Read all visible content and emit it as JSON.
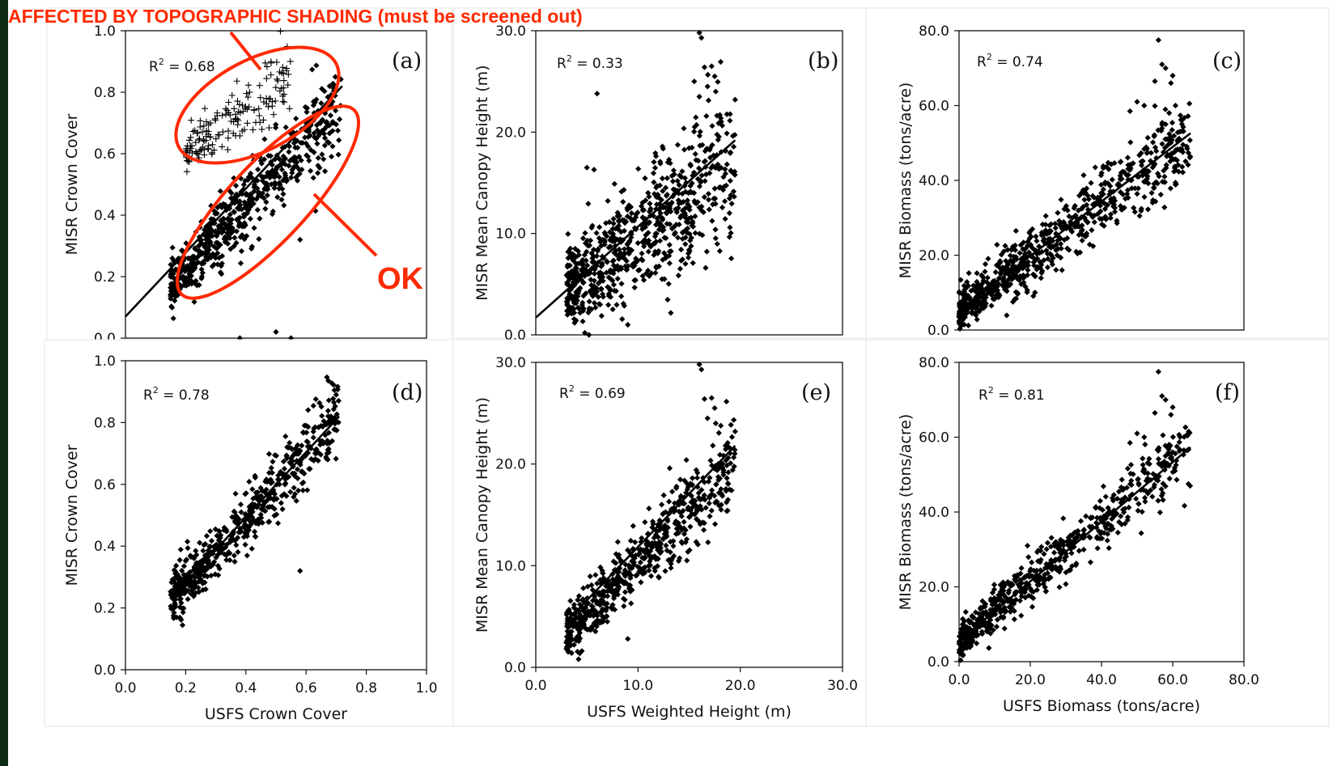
{
  "annotations": {
    "shading_text": "AFFECTED BY TOPOGRAPHIC SHADING (must be screened out)",
    "ok_text": "OK",
    "color": "#ff2a00"
  },
  "chart_data": [
    {
      "id": "a",
      "type": "scatter",
      "letter": "(a)",
      "xlabel": "",
      "ylabel": "MISR Crown Cover",
      "xlim": [
        0.0,
        1.0
      ],
      "ylim": [
        0.0,
        1.0
      ],
      "xticks": [],
      "yticks": [
        "0.0",
        "0.2",
        "0.4",
        "0.6",
        "0.8",
        "1.0"
      ],
      "r2_text": "R",
      "r2_value": " = 0.68",
      "series": [
        {
          "marker": "diamond",
          "cluster": {
            "n": 620,
            "x_range": [
              0.15,
              0.72
            ],
            "slope": 1.05,
            "intercept": 0.01,
            "spread": 0.07
          }
        },
        {
          "marker": "plus",
          "cluster": {
            "n": 170,
            "x_range": [
              0.2,
              0.55
            ],
            "slope": 0.75,
            "intercept": 0.45,
            "spread": 0.055
          }
        }
      ],
      "outliers": [
        [
          0.38,
          0.0
        ],
        [
          0.5,
          0.02
        ],
        [
          0.55,
          0.0
        ],
        [
          0.58,
          0.32
        ]
      ],
      "fit": {
        "x": [
          0.0,
          0.72
        ],
        "y": [
          0.07,
          0.82
        ]
      }
    },
    {
      "id": "b",
      "type": "scatter",
      "letter": "(b)",
      "xlabel": "",
      "ylabel": "MISR Mean Canopy Height (m)",
      "xlim": [
        0.0,
        30.0
      ],
      "ylim": [
        0.0,
        30.0
      ],
      "xticks": [],
      "yticks": [
        "0.0",
        "10.0",
        "20.0",
        "30.0"
      ],
      "r2_text": "R",
      "r2_value": " = 0.33",
      "series": [
        {
          "marker": "diamond",
          "cluster": {
            "n": 720,
            "x_range": [
              3.0,
              19.5
            ],
            "slope": 0.75,
            "intercept": 2.0,
            "spread": 3.2
          }
        }
      ],
      "outliers": [
        [
          6.0,
          23.8
        ],
        [
          16.0,
          29.8
        ],
        [
          16.2,
          29.3
        ],
        [
          17.2,
          26.5
        ],
        [
          16.5,
          26.4
        ],
        [
          17.5,
          25.5
        ],
        [
          16.8,
          24.5
        ],
        [
          17.6,
          24.0
        ],
        [
          15.5,
          25.0
        ],
        [
          16.0,
          23.5
        ],
        [
          19.5,
          23.2
        ],
        [
          5.0,
          16.5
        ],
        [
          5.7,
          16.3
        ],
        [
          4.8,
          0.2
        ],
        [
          5.2,
          0.0
        ],
        [
          9.0,
          1.0
        ]
      ],
      "fit": {
        "x": [
          0.0,
          19.5
        ],
        "y": [
          1.7,
          19.2
        ]
      }
    },
    {
      "id": "c",
      "type": "scatter",
      "letter": "(c)",
      "xlabel": "",
      "ylabel": "MISR Biomass (tons/acre)",
      "xlim": [
        0.0,
        80.0
      ],
      "ylim": [
        0.0,
        80.0
      ],
      "xticks": [],
      "yticks": [
        "0.0",
        "20.0",
        "40.0",
        "60.0",
        "80.0"
      ],
      "r2_text": "R",
      "r2_value": " = 0.74",
      "series": [
        {
          "marker": "diamond",
          "cluster": {
            "n": 720,
            "x_range": [
              0.0,
              65.0
            ],
            "slope": 0.72,
            "intercept": 5.0,
            "spread": 5.0
          }
        }
      ],
      "outliers": [
        [
          56.0,
          77.5
        ],
        [
          57.0,
          71.0
        ],
        [
          58.0,
          70.0
        ],
        [
          55.0,
          66.5
        ],
        [
          59.5,
          66.0
        ],
        [
          60.0,
          68.0
        ],
        [
          50.0,
          61.0
        ],
        [
          52.0,
          60.0
        ],
        [
          48.0,
          58.5
        ],
        [
          59.0,
          58.0
        ],
        [
          58.0,
          55.0
        ],
        [
          62.0,
          53.0
        ]
      ],
      "fit": {
        "x": [
          0.0,
          65.0
        ],
        "y": [
          5.2,
          52.6
        ]
      }
    },
    {
      "id": "d",
      "type": "scatter",
      "letter": "(d)",
      "xlabel": "USFS  Crown Cover",
      "ylabel": "MISR Crown Cover",
      "xlim": [
        0.0,
        1.0
      ],
      "ylim": [
        0.0,
        1.0
      ],
      "xticks": [
        "0.0",
        "0.2",
        "0.4",
        "0.6",
        "0.8",
        "1.0"
      ],
      "yticks": [
        "0.0",
        "0.2",
        "0.4",
        "0.6",
        "0.8",
        "1.0"
      ],
      "r2_text": "R",
      "r2_value": " = 0.78",
      "series": [
        {
          "marker": "diamond",
          "cluster": {
            "n": 600,
            "x_range": [
              0.15,
              0.71
            ],
            "slope": 1.05,
            "intercept": 0.07,
            "spread": 0.055
          }
        }
      ],
      "outliers": [
        [
          0.58,
          0.32
        ],
        [
          0.7,
          0.89
        ]
      ],
      "fit": {
        "x": [
          0.15,
          0.71
        ],
        "y": [
          0.23,
          0.82
        ]
      }
    },
    {
      "id": "e",
      "type": "scatter",
      "letter": "(e)",
      "xlabel": "USFS Weighted Height (m)",
      "ylabel": "MISR Mean Canopy Height (m)",
      "xlim": [
        0.0,
        30.0
      ],
      "ylim": [
        0.0,
        30.0
      ],
      "xticks": [
        "0.0",
        "10.0",
        "20.0",
        "30.0"
      ],
      "yticks": [
        "0.0",
        "10.0",
        "20.0",
        "30.0"
      ],
      "r2_text": "R",
      "r2_value": " = 0.69",
      "series": [
        {
          "marker": "diamond",
          "cluster": {
            "n": 620,
            "x_range": [
              3.0,
              19.5
            ],
            "slope": 1.05,
            "intercept": 0.0,
            "spread": 2.0
          }
        }
      ],
      "outliers": [
        [
          16.0,
          29.8
        ],
        [
          16.2,
          29.3
        ],
        [
          17.2,
          26.5
        ],
        [
          16.5,
          26.4
        ],
        [
          17.5,
          25.5
        ],
        [
          16.8,
          24.5
        ],
        [
          17.6,
          24.0
        ],
        [
          19.5,
          23.2
        ],
        [
          3.0,
          1.8
        ],
        [
          3.5,
          1.4
        ],
        [
          9.0,
          2.8
        ]
      ],
      "fit": {
        "x": [
          3.0,
          19.5
        ],
        "y": [
          4.5,
          21.8
        ]
      }
    },
    {
      "id": "f",
      "type": "scatter",
      "letter": "(f)",
      "xlabel": "USFS Biomass (tons/acre)",
      "ylabel": "MISR Biomass (tons/acre)",
      "xlim": [
        0.0,
        80.0
      ],
      "ylim": [
        0.0,
        80.0
      ],
      "xticks": [
        "0.0",
        "20.0",
        "40.0",
        "60.0",
        "80.0"
      ],
      "yticks": [
        "0.0",
        "20.0",
        "40.0",
        "60.0",
        "80.0"
      ],
      "r2_text": "R",
      "r2_value": " = 0.81",
      "series": [
        {
          "marker": "diamond",
          "cluster": {
            "n": 600,
            "x_range": [
              0.0,
              65.0
            ],
            "slope": 0.8,
            "intercept": 5.5,
            "spread": 4.0
          }
        }
      ],
      "outliers": [
        [
          56.0,
          77.5
        ],
        [
          57.0,
          71.0
        ],
        [
          58.0,
          70.0
        ],
        [
          55.0,
          66.5
        ],
        [
          59.5,
          66.0
        ],
        [
          60.0,
          68.0
        ],
        [
          50.0,
          61.0
        ],
        [
          52.0,
          60.0
        ],
        [
          48.0,
          58.5
        ],
        [
          59.0,
          58.0
        ],
        [
          58.0,
          55.0
        ]
      ],
      "fit": {
        "x": [
          0.0,
          65.0
        ],
        "y": [
          5.5,
          57.3
        ]
      }
    }
  ]
}
